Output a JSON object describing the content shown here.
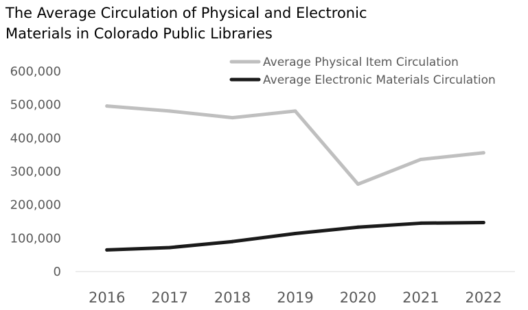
{
  "chart_data": {
    "type": "line",
    "title_lines": [
      "The Average Circulation of Physical and Electronic",
      "Materials in Colorado Public Libraries"
    ],
    "xlabel": "",
    "ylabel": "",
    "x": [
      "2016",
      "2017",
      "2018",
      "2019",
      "2020",
      "2021",
      "2022"
    ],
    "ylim": [
      0,
      600000
    ],
    "yticks": [
      "0",
      "100,000",
      "200,000",
      "300,000",
      "400,000",
      "500,000",
      "600,000"
    ],
    "grid": false,
    "legend_position": "top-right",
    "series": [
      {
        "name": "Average Physical Item Circulation",
        "color": "#bfbfbf",
        "values": [
          496000,
          481000,
          461000,
          481000,
          262000,
          336000,
          356000
        ]
      },
      {
        "name": "Average Electronic Materials Circulation",
        "color": "#1a1a1a",
        "values": [
          65000,
          72000,
          90000,
          114000,
          133000,
          145000,
          147000
        ]
      }
    ]
  }
}
